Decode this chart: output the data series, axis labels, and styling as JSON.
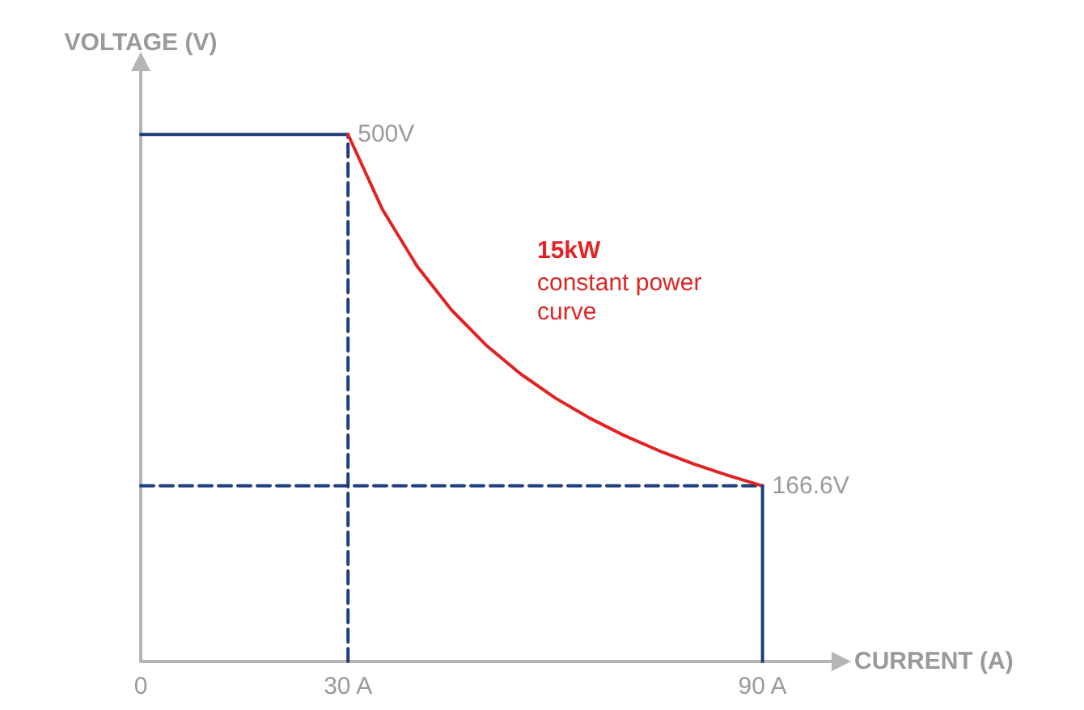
{
  "chart_data": {
    "type": "line",
    "ylim": [
      0,
      560
    ],
    "xlabel": "CURRENT (A)",
    "ylabel": "VOLTAGE (V)",
    "xlim": [
      0,
      100
    ],
    "xticks": [
      0,
      {
        "value": 30,
        "label": "30 A"
      },
      {
        "value": 90,
        "label": "90 A"
      }
    ],
    "tick_labels": "x",
    "grid": false,
    "marker": "none",
    "line_style": "solid",
    "series": [
      {
        "color": "#1f3f7a",
        "x": [
          0,
          30
        ],
        "values": [
          500,
          500
        ]
      },
      {
        "color": "#e02424",
        "x": [
          30,
          35,
          40,
          45,
          50,
          55,
          60,
          65,
          70,
          75,
          80,
          85,
          90
        ],
        "values": [
          500,
          428.6,
          375,
          333.3,
          300,
          272.7,
          250,
          230.8,
          214.3,
          200,
          187.5,
          176.5,
          166.6
        ],
        "value_labels": [
          "500V",
          null,
          null,
          null,
          null,
          null,
          null,
          null,
          null,
          null,
          null,
          null,
          "166.6V"
        ]
      },
      {
        "color": "#1f3f7a",
        "x": [
          90,
          90
        ],
        "values": [
          166.6,
          0
        ]
      },
      {
        "color": "#1f3f7a",
        "x": [
          30,
          30
        ],
        "values": [
          0,
          500
        ],
        "line_style": "dashed"
      },
      {
        "color": "#1f3f7a",
        "x": [
          0,
          90
        ],
        "values": [
          166.6,
          166.6
        ],
        "line_style": "dashed"
      }
    ],
    "annotations": [
      "15kW",
      "constant power curve"
    ]
  }
}
